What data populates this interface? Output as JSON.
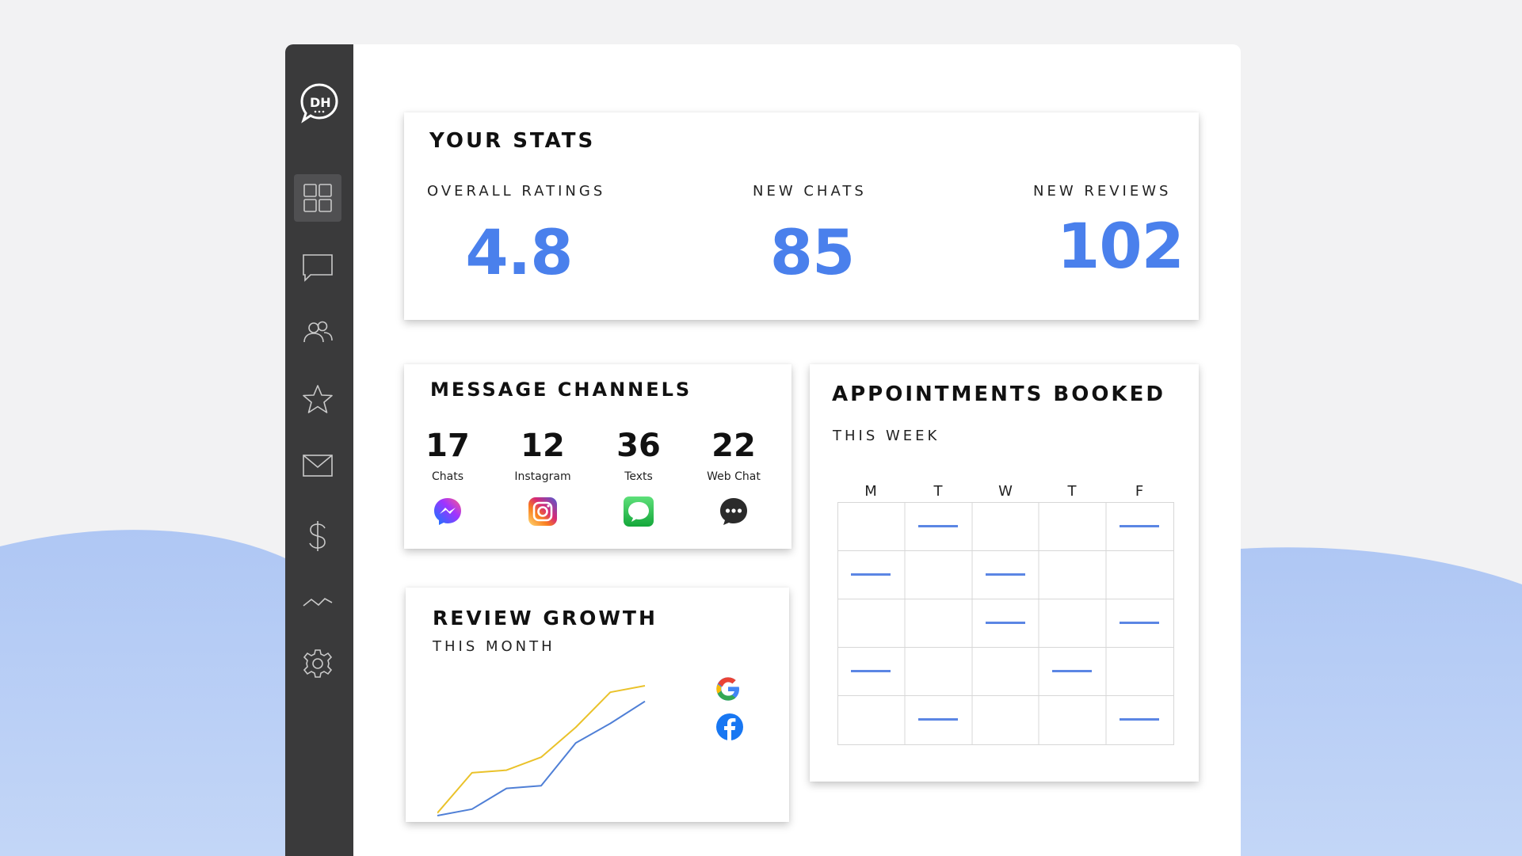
{
  "colors": {
    "accent": "#4a80ec",
    "sidebar": "#3a3a3b",
    "wave": "#b0c8f4",
    "google_line": "#eac22a",
    "facebook_line": "#4f7fd6"
  },
  "logo": {
    "text": "DH"
  },
  "sidebar": {
    "items": [
      {
        "icon": "dashboard-icon",
        "active": true
      },
      {
        "icon": "chat-icon",
        "active": false
      },
      {
        "icon": "users-icon",
        "active": false
      },
      {
        "icon": "star-icon",
        "active": false
      },
      {
        "icon": "mail-icon",
        "active": false
      },
      {
        "icon": "dollar-icon",
        "active": false
      },
      {
        "icon": "trend-icon",
        "active": false
      },
      {
        "icon": "gear-icon",
        "active": false
      }
    ]
  },
  "stats": {
    "title": "YOUR STATS",
    "overall_label": "OVERALL RATINGS",
    "overall_value": "4.8",
    "chats_label": "NEW CHATS",
    "chats_value": "85",
    "reviews_label": "NEW REVIEWS",
    "reviews_value": "102"
  },
  "channels": {
    "title": "MESSAGE CHANNELS",
    "items": [
      {
        "count": "17",
        "label": "Chats",
        "icon": "messenger-icon"
      },
      {
        "count": "12",
        "label": "Instagram",
        "icon": "instagram-icon"
      },
      {
        "count": "36",
        "label": "Texts",
        "icon": "imessage-icon"
      },
      {
        "count": "22",
        "label": "Web Chat",
        "icon": "webchat-icon"
      }
    ]
  },
  "review_growth": {
    "title": "REVIEW GROWTH",
    "subtitle": "THIS MONTH"
  },
  "chart_data": {
    "type": "line",
    "title": "REVIEW GROWTH",
    "subtitle": "THIS MONTH",
    "x": [
      0,
      1,
      2,
      3,
      4,
      5,
      6
    ],
    "ylim": [
      0,
      100
    ],
    "grid": false,
    "legend": "right (logo icons)",
    "series": [
      {
        "icon": "google-icon",
        "color": "#eac22a",
        "values": [
          2,
          33,
          35,
          45,
          68,
          95,
          100
        ]
      },
      {
        "icon": "facebook-icon",
        "color": "#4f7fd6",
        "values": [
          0,
          5,
          21,
          23,
          56,
          71,
          88
        ]
      }
    ]
  },
  "appointments": {
    "title": "APPOINTMENTS BOOKED",
    "subtitle": "THIS WEEK",
    "days": [
      "M",
      "T",
      "W",
      "T",
      "F"
    ],
    "weeks": [
      [
        false,
        true,
        false,
        false,
        true
      ],
      [
        true,
        false,
        true,
        false,
        false
      ],
      [
        false,
        false,
        true,
        false,
        true
      ],
      [
        true,
        false,
        false,
        true,
        false
      ],
      [
        false,
        true,
        false,
        false,
        true
      ]
    ]
  }
}
